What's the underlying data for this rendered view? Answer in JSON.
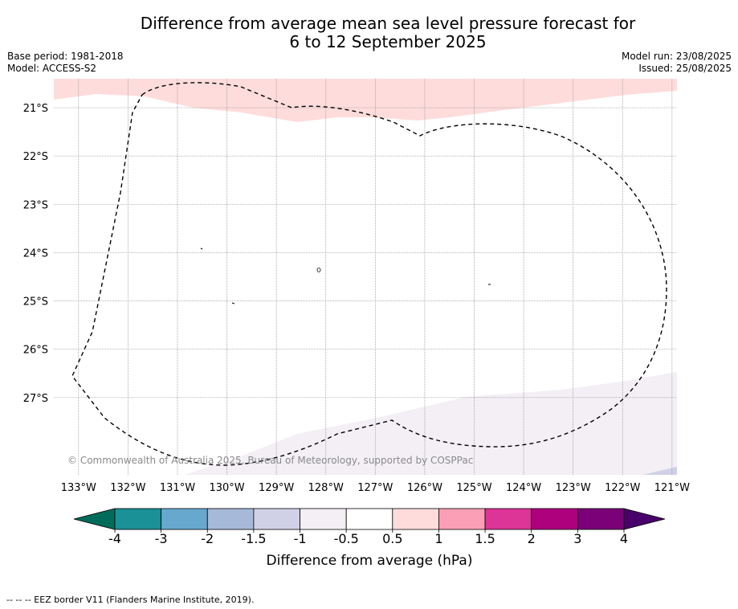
{
  "title_line1": "Difference from average mean sea level pressure forecast for",
  "title_line2": "6 to 12 September 2025",
  "base_period": "Base period: 1981-2018",
  "model": "Model: ACCESS-S2",
  "model_run": "Model run: 23/08/2025",
  "issued": "Issued: 25/08/2025",
  "copyright": "© Commonwealth of Australia 2025, Bureau of Meteorology, supported by COSPPac",
  "map": {
    "lon_range": [
      -133.5,
      -120.9
    ],
    "lat_range": [
      -28.6,
      -20.4
    ],
    "lat_ticks": [
      {
        "value": -21,
        "label": "21°S"
      },
      {
        "value": -22,
        "label": "22°S"
      },
      {
        "value": -23,
        "label": "23°S"
      },
      {
        "value": -24,
        "label": "24°S"
      },
      {
        "value": -25,
        "label": "25°S"
      },
      {
        "value": -26,
        "label": "26°S"
      },
      {
        "value": -27,
        "label": "27°S"
      }
    ],
    "lon_ticks": [
      {
        "value": -133,
        "label": "133°W"
      },
      {
        "value": -132,
        "label": "132°W"
      },
      {
        "value": -131,
        "label": "131°W"
      },
      {
        "value": -130,
        "label": "130°W"
      },
      {
        "value": -129,
        "label": "129°W"
      },
      {
        "value": -128,
        "label": "128°W"
      },
      {
        "value": -127,
        "label": "127°W"
      },
      {
        "value": -126,
        "label": "126°W"
      },
      {
        "value": -125,
        "label": "125°W"
      },
      {
        "value": -124,
        "label": "124°W"
      },
      {
        "value": -123,
        "label": "123°W"
      },
      {
        "value": -122,
        "label": "122°W"
      },
      {
        "value": -121,
        "label": "121°W"
      }
    ],
    "gridlines": true,
    "eez_border_color": "#000000"
  },
  "colorbar": {
    "label": "Difference from average (hPa)",
    "ticks": [
      "-4",
      "-3",
      "-2",
      "-1.5",
      "-1",
      "-0.5",
      "0.5",
      "1",
      "1.5",
      "2",
      "3",
      "4"
    ],
    "colors": [
      "#1a9097",
      "#67a8cf",
      "#a6b9d8",
      "#d0d1e6",
      "#f3eff5",
      "#ffffff",
      "#ffdcdc",
      "#fa9fb5",
      "#dd3497",
      "#ae017e",
      "#7a0177"
    ],
    "under_color": "#016c59",
    "over_color": "#49006a"
  },
  "footnote": "--  --  -- EEZ border V11 (Flanders Marine Institute, 2019)."
}
